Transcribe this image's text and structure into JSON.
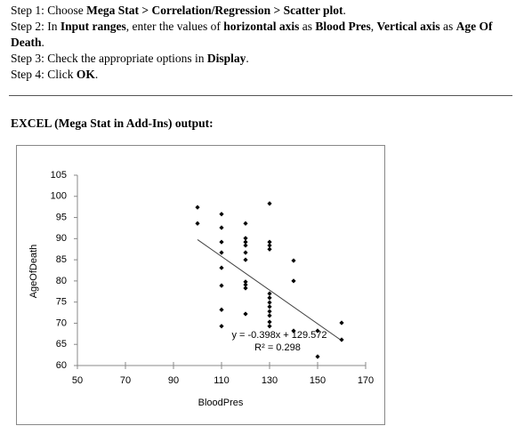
{
  "steps": [
    [
      {
        "text": "Step 1: Choose ",
        "bold": false
      },
      {
        "text": "Mega Stat > Correlation/Regression > Scatter plot",
        "bold": true
      },
      {
        "text": ".",
        "bold": false
      }
    ],
    [
      {
        "text": "Step 2: In ",
        "bold": false
      },
      {
        "text": "Input ranges",
        "bold": true
      },
      {
        "text": ", enter the values of ",
        "bold": false
      },
      {
        "text": "horizontal axis",
        "bold": true
      },
      {
        "text": " as ",
        "bold": false
      },
      {
        "text": "Blood Pres",
        "bold": true
      },
      {
        "text": ", ",
        "bold": false
      },
      {
        "text": "Vertical axis",
        "bold": true
      },
      {
        "text": " as ",
        "bold": false
      },
      {
        "text": "Age Of Death",
        "bold": true
      },
      {
        "text": ".",
        "bold": false
      }
    ],
    [
      {
        "text": "Step 3: Check the appropriate options in ",
        "bold": false
      },
      {
        "text": "Display",
        "bold": true
      },
      {
        "text": ".",
        "bold": false
      }
    ],
    [
      {
        "text": "Step 4: Click ",
        "bold": false
      },
      {
        "text": "OK",
        "bold": true
      },
      {
        "text": ".",
        "bold": false
      }
    ]
  ],
  "heading": "EXCEL (Mega Stat in Add-Ins) output:",
  "chart_data": {
    "type": "scatter",
    "x_label": "BloodPres",
    "y_label": "AgeOfDeath",
    "x": [
      100,
      100,
      110,
      110,
      110,
      110,
      110,
      110,
      110,
      110,
      120,
      120,
      120,
      120,
      120,
      120,
      120,
      120,
      120,
      120,
      130,
      130,
      130,
      130,
      130,
      130,
      130,
      130,
      130,
      130,
      130,
      130,
      140,
      140,
      140,
      150,
      150,
      160,
      160
    ],
    "values": [
      97.4,
      93.6,
      95.8,
      92.6,
      89.2,
      86.7,
      83.1,
      78.9,
      73.2,
      69.3,
      93.6,
      90.1,
      89.2,
      88.4,
      86.7,
      85,
      79.8,
      79.1,
      78.3,
      72.2,
      98.3,
      89.2,
      88.4,
      87.5,
      77,
      76,
      74.9,
      73.9,
      72.8,
      71.8,
      70.3,
      69.3,
      84.8,
      80,
      68.2,
      68.2,
      62.1,
      70.1,
      66.1
    ],
    "color": "#000000",
    "xlim": [
      50,
      170
    ],
    "xticks": [
      50,
      70,
      90,
      110,
      130,
      150,
      170
    ],
    "ylim": [
      60,
      105
    ],
    "yticks": [
      60,
      65,
      70,
      75,
      80,
      85,
      90,
      95,
      100,
      105
    ],
    "trendline": {
      "slope": -0.398,
      "intercept": 129.572,
      "label": "y = -0.398x + 129.572",
      "r2_label": "R² = 0.298",
      "color": "#404040"
    }
  }
}
